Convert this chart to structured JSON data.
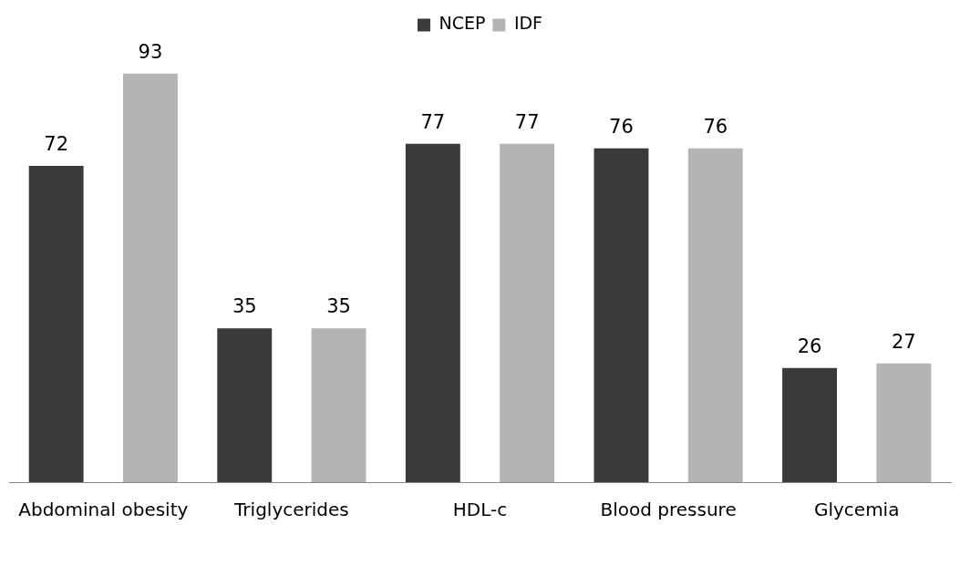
{
  "chart_data": {
    "type": "bar",
    "categories": [
      "Abdominal obesity",
      "Triglycerides",
      "HDL-c",
      "Blood pressure",
      "Glycemia"
    ],
    "series": [
      {
        "name": "NCEP",
        "color": "#3a3a3a",
        "values": [
          72,
          35,
          77,
          76,
          26
        ]
      },
      {
        "name": "IDF",
        "color": "#b4b4b4",
        "values": [
          93,
          35,
          77,
          76,
          27
        ]
      }
    ],
    "data_labels": true,
    "legend": "top",
    "grid": false
  }
}
